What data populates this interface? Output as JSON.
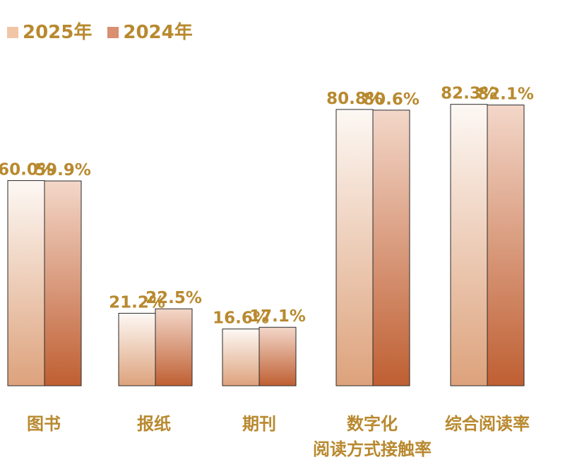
{
  "chart_data": {
    "type": "bar",
    "categories": [
      "图书",
      "报纸",
      "期刊",
      "数字化\n阅读方式接触率",
      "综合阅读率"
    ],
    "series": [
      {
        "name": "2025年",
        "values": [
          60.0,
          21.2,
          16.6,
          80.8,
          82.3
        ],
        "labels": [
          "60.0%",
          "21.2%",
          "16.6%",
          "80.8%",
          "82.3%"
        ]
      },
      {
        "name": "2024年",
        "values": [
          59.9,
          22.5,
          17.1,
          80.6,
          82.1
        ],
        "labels": [
          "59.9%",
          "22.5%",
          "17.1%",
          "80.6%",
          "82.1%"
        ]
      }
    ],
    "ylim": [
      0,
      100
    ],
    "grid": false,
    "legend": "top-left",
    "colors": {
      "label_text": "#b8892f",
      "series_2025_top": "#fdf8f4",
      "series_2025_bottom": "#dda27c",
      "series_2024_top": "#f3d7c9",
      "series_2024_bottom": "#bf5f32",
      "bar_outline": "#2a2a2a"
    }
  }
}
